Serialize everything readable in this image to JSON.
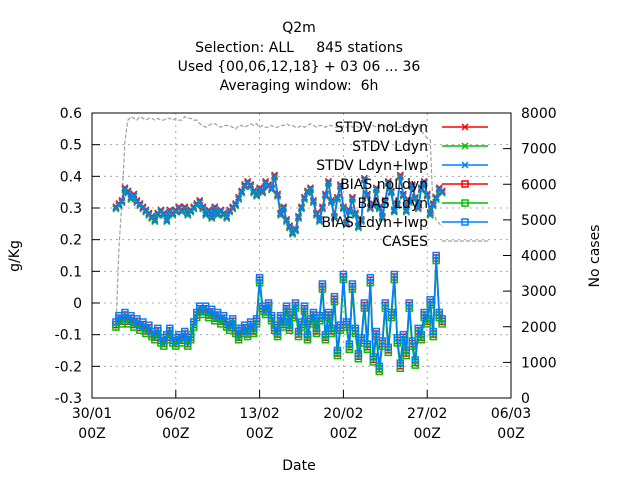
{
  "titles": [
    "Q2m",
    "Selection: ALL     845 stations",
    "Used {00,06,12,18} + 03 06 ... 36",
    "Averaging window:  6h"
  ],
  "chart_data": {
    "type": "line",
    "title": "Q2m",
    "xlabel": "Date",
    "ylabel": "g/Kg",
    "y2label": "No cases",
    "ylim": [
      -0.3,
      0.6
    ],
    "y2lim": [
      0,
      8000
    ],
    "xlim_days_from_30_01": [
      0,
      35
    ],
    "grid": true,
    "legend_position": "top-right",
    "x_ticks": [
      "30/01\n00Z",
      "06/02\n00Z",
      "13/02\n00Z",
      "20/02\n00Z",
      "27/02\n00Z",
      "06/03\n00Z"
    ],
    "y_ticks": [
      "-0.3",
      "-0.2",
      "-0.1",
      "0",
      "0.1",
      "0.2",
      "0.3",
      "0.4",
      "0.5",
      "0.6"
    ],
    "y2_ticks": [
      "0",
      "1000",
      "2000",
      "3000",
      "4000",
      "5000",
      "6000",
      "7000",
      "8000"
    ],
    "legend": [
      "STDV noLdyn",
      "STDV Ldyn",
      "STDV Ldyn+lwp",
      "BIAS noLdyn",
      "BIAS Ldyn",
      "BIAS Ldyn+lwp",
      "CASES"
    ],
    "colors": {
      "red": "#ff0000",
      "green": "#00c000",
      "blue": "#0080ff",
      "cases": "#a0a0a0"
    },
    "x_days": [
      2.0,
      2.25,
      2.5,
      2.75,
      3.0,
      3.25,
      3.5,
      3.75,
      4.0,
      4.25,
      4.5,
      4.75,
      5.0,
      5.25,
      5.5,
      5.75,
      6.0,
      6.25,
      6.5,
      6.75,
      7.0,
      7.25,
      7.5,
      7.75,
      8.0,
      8.25,
      8.5,
      8.75,
      9.0,
      9.25,
      9.5,
      9.75,
      10.0,
      10.25,
      10.5,
      10.75,
      11.0,
      11.25,
      11.5,
      11.75,
      12.0,
      12.25,
      12.5,
      12.75,
      13.0,
      13.25,
      13.5,
      13.75,
      14.0,
      14.25,
      14.5,
      14.75,
      15.0,
      15.25,
      15.5,
      15.75,
      16.0,
      16.25,
      16.5,
      16.75,
      17.0,
      17.25,
      17.5,
      17.75,
      18.0,
      18.25,
      18.5,
      18.75,
      19.0,
      19.25,
      19.5,
      19.75,
      20.0,
      20.25,
      20.5,
      20.75,
      21.0,
      21.25,
      21.5,
      21.75,
      22.0,
      22.25,
      22.5,
      22.75,
      23.0,
      23.25,
      23.5,
      23.75,
      24.0,
      24.25,
      24.5,
      24.75,
      25.0,
      25.25,
      25.5,
      25.75,
      26.0,
      26.25,
      26.5,
      26.75,
      27.0,
      27.25,
      27.5,
      27.75,
      28.0,
      28.25,
      28.5,
      28.75,
      29.0,
      29.25
    ],
    "series": [
      {
        "name": "STDV Ldyn+lwp",
        "values": [
          0.3,
          0.31,
          0.32,
          0.36,
          0.35,
          0.33,
          0.34,
          0.32,
          0.31,
          0.3,
          0.29,
          0.28,
          0.27,
          0.26,
          0.28,
          0.29,
          0.28,
          0.26,
          0.29,
          0.28,
          0.29,
          0.3,
          0.29,
          0.3,
          0.28,
          0.29,
          0.3,
          0.31,
          0.32,
          0.3,
          0.28,
          0.29,
          0.27,
          0.3,
          0.28,
          0.29,
          0.28,
          0.27,
          0.29,
          0.3,
          0.31,
          0.33,
          0.35,
          0.37,
          0.38,
          0.37,
          0.35,
          0.34,
          0.36,
          0.35,
          0.38,
          0.37,
          0.36,
          0.4,
          0.34,
          0.28,
          0.3,
          0.26,
          0.24,
          0.22,
          0.23,
          0.27,
          0.3,
          0.33,
          0.35,
          0.36,
          0.32,
          0.28,
          0.26,
          0.3,
          0.34,
          0.38,
          0.32,
          0.27,
          0.33,
          0.37,
          0.3,
          0.25,
          0.29,
          0.33,
          0.28,
          0.24,
          0.26,
          0.39,
          0.34,
          0.3,
          0.31,
          0.36,
          0.3,
          0.27,
          0.32,
          0.38,
          0.35,
          0.29,
          0.31,
          0.4,
          0.34,
          0.29,
          0.32,
          0.37,
          0.33,
          0.3,
          0.36,
          0.38,
          0.34,
          0.28,
          0.31,
          0.33,
          0.36,
          0.35
        ]
      },
      {
        "name": "BIAS Ldyn+lwp",
        "values": [
          -0.06,
          -0.04,
          -0.05,
          -0.03,
          -0.05,
          -0.04,
          -0.06,
          -0.05,
          -0.07,
          -0.06,
          -0.08,
          -0.07,
          -0.09,
          -0.1,
          -0.08,
          -0.11,
          -0.12,
          -0.1,
          -0.08,
          -0.11,
          -0.12,
          -0.1,
          -0.11,
          -0.09,
          -0.12,
          -0.1,
          -0.06,
          -0.03,
          -0.01,
          -0.02,
          -0.01,
          -0.03,
          -0.02,
          -0.04,
          -0.03,
          -0.05,
          -0.04,
          -0.06,
          -0.07,
          -0.05,
          -0.08,
          -0.1,
          -0.08,
          -0.07,
          -0.09,
          -0.06,
          -0.08,
          -0.05,
          0.08,
          -0.01,
          -0.02,
          0.0,
          -0.04,
          -0.07,
          -0.09,
          -0.04,
          -0.06,
          -0.01,
          -0.07,
          -0.03,
          0.0,
          -0.09,
          -0.06,
          -0.01,
          -0.1,
          -0.05,
          -0.03,
          -0.08,
          -0.04,
          0.06,
          -0.1,
          -0.03,
          -0.08,
          0.02,
          -0.15,
          -0.07,
          0.09,
          -0.06,
          -0.13,
          0.06,
          -0.08,
          -0.16,
          -0.11,
          0.0,
          -0.13,
          0.08,
          -0.17,
          -0.09,
          -0.2,
          -0.12,
          0.0,
          -0.14,
          -0.03,
          0.09,
          -0.11,
          -0.19,
          -0.1,
          -0.15,
          0.0,
          -0.12,
          -0.18,
          -0.08,
          -0.1,
          -0.03,
          -0.05,
          0.01,
          -0.09,
          0.15,
          -0.03,
          -0.05
        ]
      },
      {
        "name": "CASES",
        "values": [
          1900,
          4200,
          5500,
          7200,
          7800,
          7900,
          7850,
          7800,
          7900,
          7850,
          7800,
          7850,
          7850,
          7800,
          7850,
          7800,
          7800,
          7850,
          7850,
          7800,
          7850,
          7800,
          7800,
          7900,
          7850,
          7850,
          7800,
          7800,
          7700,
          7650,
          7600,
          7650,
          7700,
          7700,
          7650,
          7600,
          7650,
          7650,
          7650,
          7600,
          7550,
          7650,
          7650,
          7600,
          7650,
          7700,
          7650,
          7700,
          7600,
          7650,
          7600,
          7600,
          7650,
          7600,
          7600,
          7650,
          7650,
          7700,
          7650,
          7650,
          7600,
          7600,
          7650,
          7600,
          7650,
          7700,
          7650,
          7600,
          7650,
          7650,
          7600,
          7650,
          7650,
          7600,
          7600,
          7650,
          7600,
          7600,
          7650,
          7600,
          7650,
          7600,
          7600,
          7650,
          7650,
          7600,
          7650,
          7600,
          7650,
          7600,
          7650,
          7650,
          7600,
          7650,
          7600,
          7600,
          7650,
          7600,
          7650,
          7600,
          7550,
          7650,
          7500,
          7400,
          7300,
          7250,
          5200,
          5000,
          4900,
          4800
        ]
      }
    ]
  }
}
